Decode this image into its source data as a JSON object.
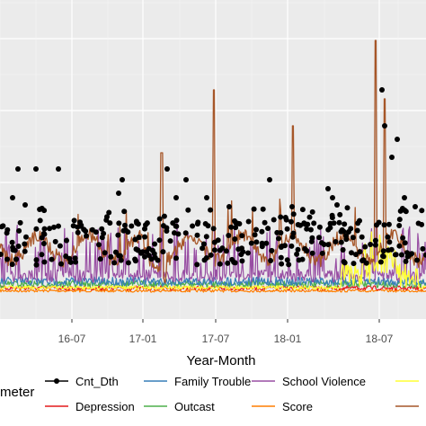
{
  "chart_data": {
    "type": "line",
    "xlabel": "Year-Month",
    "ylabel": "",
    "x_ticks": [
      "16-07",
      "17-01",
      "17-07",
      "18-01",
      "18-07"
    ],
    "x_range": [
      "2016-01",
      "2019-01"
    ],
    "y_range": [
      0,
      1
    ],
    "grid": true,
    "legend_position": "bottom",
    "legend_title": "meter",
    "series": [
      {
        "name": "Cnt_Dth",
        "color": "#000000",
        "style": "points-and-line"
      },
      {
        "name": "Depression",
        "color": "#e41a1c",
        "style": "line"
      },
      {
        "name": "Family Trouble",
        "color": "#377eb8",
        "style": "line"
      },
      {
        "name": "Outcast",
        "color": "#4daf4a",
        "style": "line"
      },
      {
        "name": "School Violence",
        "color": "#984ea3",
        "style": "line"
      },
      {
        "name": "Score",
        "color": "#ff7f00",
        "style": "line"
      },
      {
        "name": "",
        "color": "#ffff33",
        "style": "line"
      },
      {
        "name": "",
        "color": "#a65628",
        "style": "line"
      }
    ]
  }
}
